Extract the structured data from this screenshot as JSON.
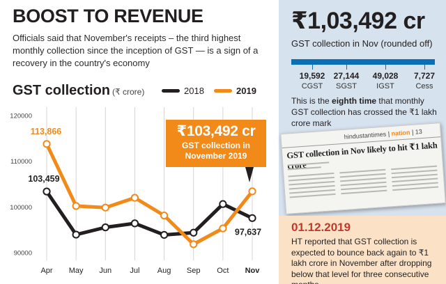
{
  "headline": "BOOST TO REVENUE",
  "deck": "Officials said that November's receipts – the third highest monthly collection since the inception of GST — is a sign of a recovery in the country's economy",
  "chart_title": "GST collection",
  "chart_unit": "(₹ crore)",
  "colors": {
    "s2018": "#231f20",
    "s2019": "#f28a1a",
    "accent": "#f28a1a",
    "blue": "#0b6fb5",
    "date": "#c0392b"
  },
  "callout": {
    "amount": "₹103,492 cr",
    "line1": "GST collection in",
    "line2": "November 2019"
  },
  "chart_data": {
    "type": "line",
    "title": "GST collection",
    "ylabel": "(₹ crore)",
    "categories": [
      "Apr",
      "May",
      "Jun",
      "Jul",
      "Aug",
      "Sep",
      "Oct",
      "Nov"
    ],
    "ylim": [
      89000,
      121000
    ],
    "yticks": [
      90000,
      100000,
      110000,
      120000
    ],
    "ytick_labels": [
      "90000",
      "100000",
      "110000",
      "120000"
    ],
    "grid": true,
    "legend": "top-right",
    "series": [
      {
        "name": "2018",
        "values": [
          103459,
          94016,
          95610,
          96483,
          93960,
          94442,
          100710,
          97637
        ]
      },
      {
        "name": "2019",
        "values": [
          113866,
          100289,
          99939,
          102083,
          98202,
          91916,
          95380,
          103492
        ]
      }
    ],
    "data_labels": [
      {
        "series": "2019",
        "index": 0,
        "text": "113,866"
      },
      {
        "series": "2018",
        "index": 0,
        "text": "103,459"
      },
      {
        "series": "2018",
        "index": 7,
        "text": "97,637"
      }
    ]
  },
  "summary": {
    "amount": "₹1,03,492 cr",
    "caption": "GST collection in Nov (rounded off)",
    "components": [
      {
        "value": "19,592",
        "label": "CGST"
      },
      {
        "value": "27,144",
        "label": "SGST"
      },
      {
        "value": "49,028",
        "label": "IGST"
      },
      {
        "value": "7,727",
        "label": "Cess"
      }
    ],
    "note_pre": "This is the ",
    "note_bold": "eighth time",
    "note_post": " that monthly GST collection has crossed the ₹1 lakh crore mark"
  },
  "clipping": {
    "masthead_a": "hindustantimes",
    "masthead_b": "nation",
    "masthead_c": "13",
    "headline": "GST collection in Nov likely to hit ₹1 lakh crore"
  },
  "dated_note": {
    "date": "01.12.2019",
    "text": "HT reported that GST collection is expected to bounce back again to ₹1 lakh crore in November after dropping below that level for three consecutive months"
  }
}
